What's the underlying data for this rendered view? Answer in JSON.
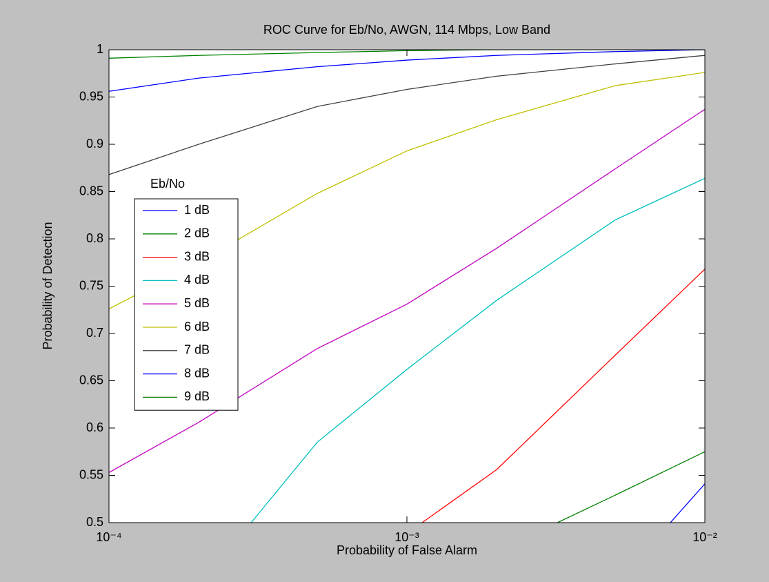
{
  "chart_data": {
    "type": "line",
    "title": "ROC Curve for Eb/No, AWGN, 114 Mbps, Low Band",
    "xlabel": "Probability of False Alarm",
    "ylabel": "Probability of Detection",
    "xscale": "log",
    "xlim": [
      0.0001,
      0.01
    ],
    "xticks": [
      {
        "value": 0.0001,
        "label": "10⁻⁴"
      },
      {
        "value": 0.001,
        "label": "10⁻³"
      },
      {
        "value": 0.01,
        "label": "10⁻²"
      }
    ],
    "ylim": [
      0.5,
      1
    ],
    "yticks": [
      0.5,
      0.55,
      0.6,
      0.65,
      0.7,
      0.75,
      0.8,
      0.85,
      0.9,
      0.95,
      1
    ],
    "legend_title": "Eb/No",
    "series": [
      {
        "name": "1 dB",
        "color": "#0000ff",
        "x": [
          0.00766,
          0.01
        ],
        "values": [
          0.5,
          0.541
        ]
      },
      {
        "name": "2 dB",
        "color": "#008000",
        "x": [
          0.0032,
          0.005,
          0.01
        ],
        "values": [
          0.5,
          0.529,
          0.575
        ]
      },
      {
        "name": "3 dB",
        "color": "#ff0000",
        "x": [
          0.001125,
          0.002,
          0.005,
          0.01
        ],
        "values": [
          0.5,
          0.556,
          0.677,
          0.768
        ]
      },
      {
        "name": "4 dB",
        "color": "#00bfbf",
        "x": [
          0.0003,
          0.0005,
          0.001,
          0.002,
          0.005,
          0.01
        ],
        "values": [
          0.5,
          0.585,
          0.662,
          0.735,
          0.82,
          0.864
        ]
      },
      {
        "name": "5 dB",
        "color": "#bf00bf",
        "x": [
          0.0001,
          0.0002,
          0.0005,
          0.001,
          0.002,
          0.005,
          0.01
        ],
        "values": [
          0.553,
          0.606,
          0.684,
          0.731,
          0.79,
          0.874,
          0.937
        ]
      },
      {
        "name": "6 dB",
        "color": "#bfbf00",
        "x": [
          0.0001,
          0.0002,
          0.0005,
          0.001,
          0.002,
          0.005,
          0.01
        ],
        "values": [
          0.726,
          0.775,
          0.848,
          0.893,
          0.926,
          0.962,
          0.976
        ]
      },
      {
        "name": "7 dB",
        "color": "#404040",
        "x": [
          0.0001,
          0.0002,
          0.0005,
          0.001,
          0.002,
          0.005,
          0.01
        ],
        "values": [
          0.868,
          0.9,
          0.94,
          0.958,
          0.972,
          0.985,
          0.994
        ]
      },
      {
        "name": "8 dB",
        "color": "#0000ff",
        "x": [
          0.0001,
          0.0002,
          0.0005,
          0.001,
          0.002,
          0.005,
          0.01
        ],
        "values": [
          0.956,
          0.97,
          0.982,
          0.989,
          0.994,
          0.998,
          1.0
        ]
      },
      {
        "name": "9 dB",
        "color": "#008000",
        "x": [
          0.0001,
          0.0002,
          0.0005,
          0.001,
          0.002,
          0.01
        ],
        "values": [
          0.991,
          0.994,
          0.997,
          0.999,
          1.0,
          1.0
        ]
      }
    ]
  }
}
